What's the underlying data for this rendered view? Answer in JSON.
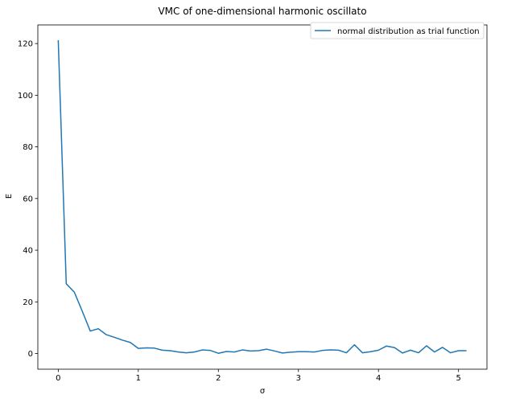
{
  "chart_data": {
    "type": "line",
    "title": "VMC of one-dimensional harmonic oscillato",
    "xlabel": "σ",
    "ylabel": "E",
    "xlim": [
      -0.255,
      5.355
    ],
    "ylim": [
      -6.06,
      127.2
    ],
    "xticks": [
      0,
      1,
      2,
      3,
      4,
      5
    ],
    "yticks": [
      0,
      20,
      40,
      60,
      80,
      100,
      120
    ],
    "grid": false,
    "legend_position": "top-right",
    "series": [
      {
        "name": "normal distribution as trial function",
        "color": "#1f77b4",
        "x": [
          0.0,
          0.1,
          0.2,
          0.3,
          0.4,
          0.5,
          0.6,
          0.7,
          0.8,
          0.9,
          1.0,
          1.1,
          1.2,
          1.3,
          1.4,
          1.5,
          1.6,
          1.7,
          1.8,
          1.9,
          2.0,
          2.1,
          2.2,
          2.3,
          2.4,
          2.5,
          2.6,
          2.7,
          2.8,
          2.9,
          3.0,
          3.1,
          3.2,
          3.3,
          3.4,
          3.5,
          3.6,
          3.7,
          3.8,
          3.9,
          4.0,
          4.1,
          4.2,
          4.3,
          4.4,
          4.5,
          4.6,
          4.7,
          4.8,
          4.9,
          5.0,
          5.1
        ],
        "y": [
          121.3,
          27.0,
          23.8,
          16.4,
          8.7,
          9.6,
          7.3,
          6.3,
          5.2,
          4.3,
          2.0,
          2.2,
          2.1,
          1.3,
          1.1,
          0.6,
          0.3,
          0.6,
          1.4,
          1.2,
          0.1,
          0.8,
          0.6,
          1.4,
          1.0,
          1.1,
          1.7,
          1.0,
          0.2,
          0.5,
          0.7,
          0.7,
          0.6,
          1.2,
          1.4,
          1.3,
          0.3,
          3.4,
          0.3,
          0.7,
          1.3,
          2.9,
          2.3,
          0.2,
          1.3,
          0.3,
          3.0,
          0.6,
          2.4,
          0.3,
          1.1,
          1.1
        ]
      }
    ]
  }
}
